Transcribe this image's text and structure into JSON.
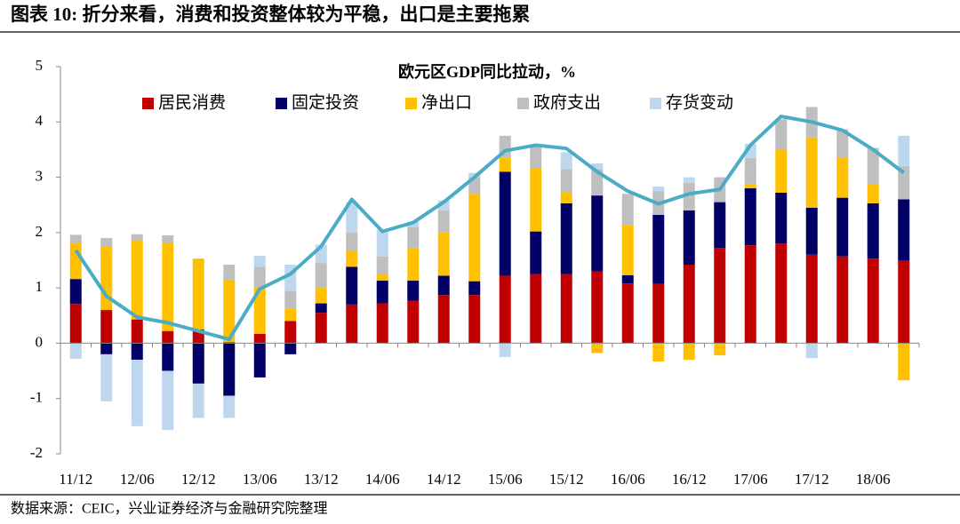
{
  "header": {
    "title": "图表 10: 折分来看，消费和投资整体较为平稳，出口是主要拖累"
  },
  "source": "数据来源：CEIC，兴业证券经济与金融研究院整理",
  "chart_data": {
    "type": "bar",
    "stacked": true,
    "title": "欧元区GDP同比拉动，%",
    "categories": [
      "11/12",
      null,
      "12/06",
      null,
      "12/12",
      null,
      "13/06",
      null,
      "13/12",
      null,
      "14/06",
      null,
      "14/12",
      null,
      "15/06",
      null,
      "15/12",
      null,
      "16/06",
      null,
      "16/12",
      null,
      "17/06",
      null,
      "17/12",
      null,
      "18/06",
      null
    ],
    "series": [
      {
        "name": "居民消费",
        "color": "#c00000",
        "values": [
          0.71,
          0.6,
          0.43,
          0.22,
          0.25,
          0.02,
          0.17,
          0.4,
          0.55,
          0.7,
          0.72,
          0.77,
          0.87,
          0.87,
          1.22,
          1.25,
          1.25,
          1.3,
          1.08,
          1.07,
          1.42,
          1.72,
          1.77,
          1.8,
          1.6,
          1.57,
          1.53,
          1.5
        ]
      },
      {
        "name": "固定投资",
        "color": "#000066",
        "values": [
          0.45,
          -0.2,
          -0.3,
          -0.5,
          -0.73,
          -0.95,
          -0.62,
          -0.2,
          0.17,
          0.68,
          0.41,
          0.36,
          0.35,
          0.25,
          1.88,
          0.77,
          1.28,
          1.37,
          0.15,
          1.25,
          0.98,
          0.83,
          1.03,
          0.92,
          0.85,
          1.06,
          1.0,
          1.1
        ]
      },
      {
        "name": "净出口",
        "color": "#ffc000",
        "values": [
          0.65,
          1.15,
          1.43,
          1.6,
          1.28,
          1.13,
          0.83,
          0.23,
          0.28,
          0.29,
          0.12,
          0.59,
          0.78,
          1.58,
          0.25,
          1.15,
          0.2,
          -0.18,
          0.9,
          -0.33,
          -0.3,
          -0.22,
          0.07,
          0.78,
          1.27,
          0.72,
          0.35,
          -0.67
        ]
      },
      {
        "name": "政府支出",
        "color": "#bfbfbf",
        "values": [
          0.15,
          0.15,
          0.11,
          0.13,
          0,
          0.27,
          0.38,
          0.32,
          0.45,
          0.33,
          0.32,
          0.38,
          0.4,
          0.3,
          0.4,
          0.38,
          0.42,
          0.48,
          0.57,
          0.43,
          0.5,
          0.45,
          0.48,
          0.55,
          0.55,
          0.52,
          0.65,
          0.6
        ]
      },
      {
        "name": "存货变动",
        "color": "#bdd7ee",
        "values": [
          -0.28,
          -0.85,
          -1.2,
          -1.07,
          -0.62,
          -0.4,
          0.2,
          0.47,
          0.33,
          0.55,
          0.48,
          0.1,
          0.18,
          0.08,
          -0.25,
          0,
          0.3,
          0.1,
          0,
          0.08,
          0.1,
          0,
          0.25,
          0,
          -0.27,
          0,
          0,
          0.55
        ]
      }
    ],
    "line": {
      "color": "#4bacc6",
      "values": [
        1.68,
        0.85,
        0.47,
        0.37,
        0.22,
        0.07,
        0.98,
        1.25,
        1.75,
        2.6,
        2.02,
        2.18,
        2.55,
        3.0,
        3.48,
        3.58,
        3.52,
        3.1,
        2.75,
        2.52,
        2.7,
        2.78,
        3.58,
        4.1,
        4.0,
        3.85,
        3.5,
        3.08
      ]
    },
    "ylim": [
      -2,
      5
    ],
    "yticks": [
      -2,
      -1,
      0,
      1,
      2,
      3,
      4,
      5
    ]
  }
}
